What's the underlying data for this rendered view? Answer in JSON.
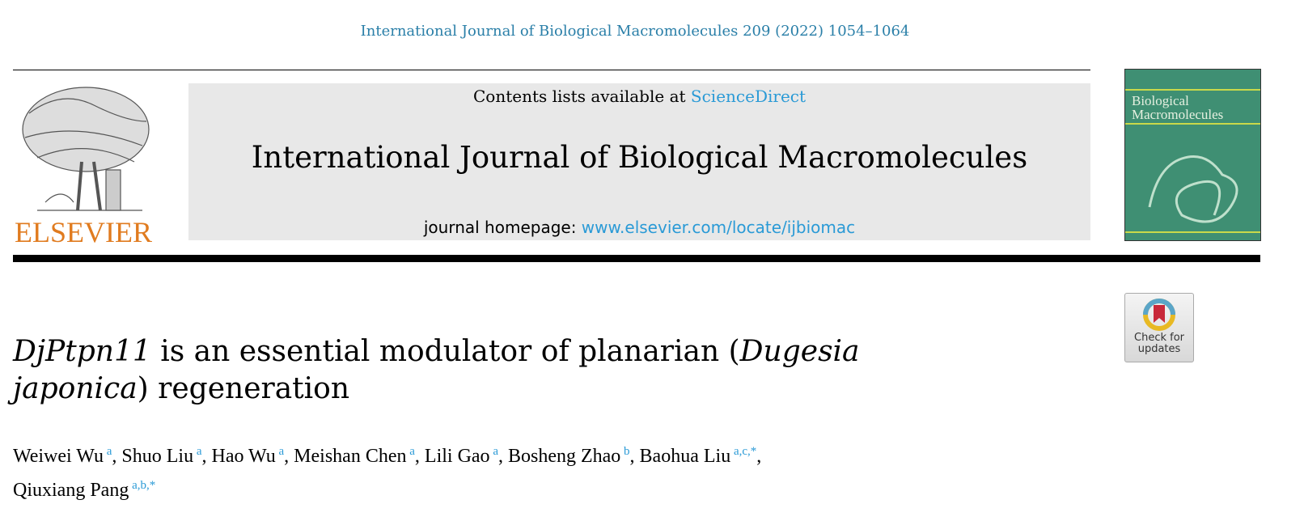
{
  "citation": "International Journal of Biological Macromolecules 209 (2022) 1054–1064",
  "publisher_logo": "ELSEVIER",
  "masthead": {
    "contents_prefix": "Contents lists available at ",
    "contents_link": "ScienceDirect",
    "journal_name": "International Journal of Biological Macromolecules",
    "homepage_prefix": "journal homepage: ",
    "homepage_link": "www.elsevier.com/locate/ijbiomac"
  },
  "cover": {
    "title_line1": "Biological",
    "title_line2": "Macromolecules",
    "color": "#3f8f73"
  },
  "crossmark": {
    "line1": "Check for",
    "line2": "updates"
  },
  "article": {
    "title_italic1": "DjPtpn11",
    "title_mid": " is an essential modulator of planarian (",
    "title_italic2": "Dugesia japonica",
    "title_end": ") regeneration",
    "authors": [
      {
        "name": "Weiwei Wu",
        "aff": "a"
      },
      {
        "name": "Shuo Liu",
        "aff": "a"
      },
      {
        "name": "Hao Wu",
        "aff": "a"
      },
      {
        "name": "Meishan Chen",
        "aff": "a"
      },
      {
        "name": "Lili Gao",
        "aff": "a"
      },
      {
        "name": "Bosheng Zhao",
        "aff": "b"
      },
      {
        "name": "Baohua Liu",
        "aff": "a,c,*"
      },
      {
        "name": "Qiuxiang Pang",
        "aff": "a,b,*"
      }
    ]
  }
}
